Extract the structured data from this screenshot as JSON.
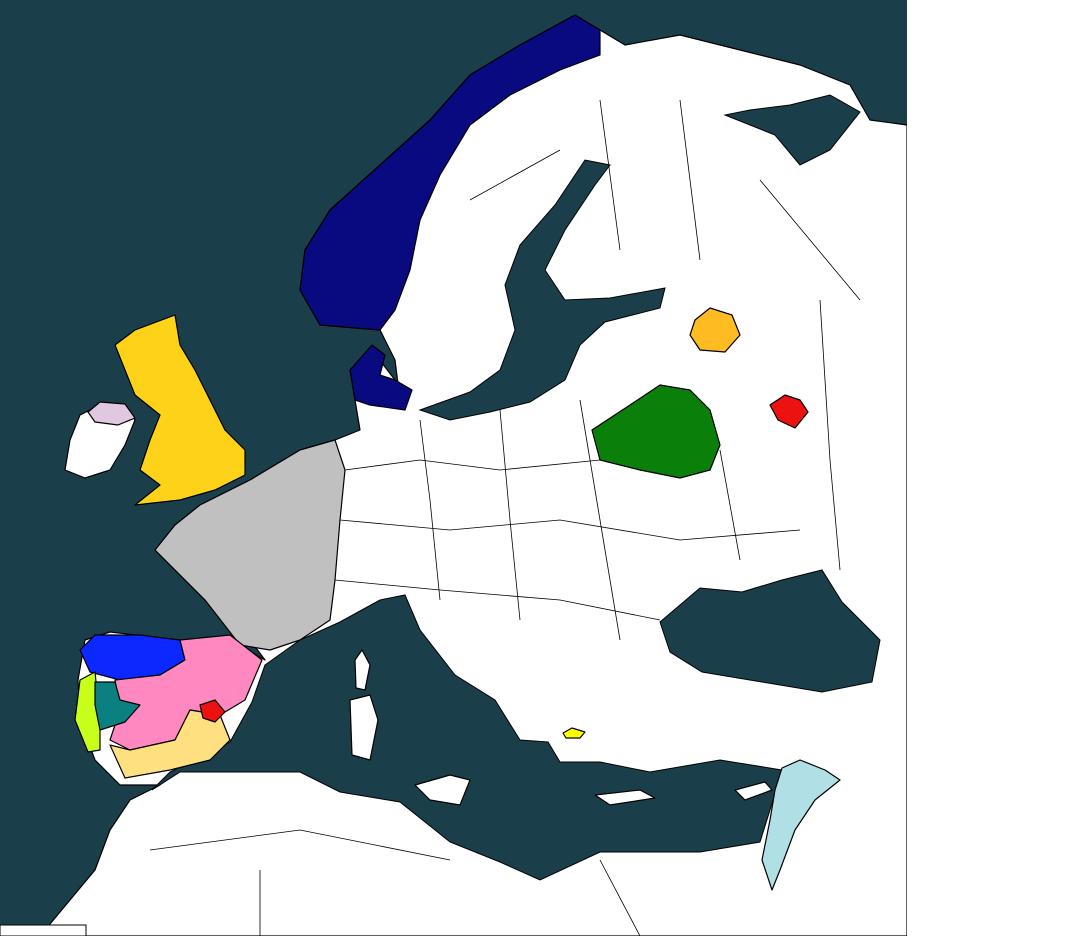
{
  "colors": {
    "sea": "#1b3f4a",
    "land": "#ffffff",
    "border": "#000000",
    "region_navy": "#0a0a80",
    "region_gold": "#ffd21a",
    "region_grey": "#c0c0c0",
    "region_pink": "#ff88c0",
    "region_blue": "#0a28ff",
    "region_lime": "#c8ff1a",
    "region_teal": "#0a8080",
    "region_tan": "#ffe080",
    "region_red": "#ee1111",
    "region_green": "#0a7f0a",
    "region_orange": "#ffbb22",
    "region_lightblue": "#b0e0e6",
    "region_yellow": "#ffff00",
    "region_lilac": "#e0c8e0"
  }
}
